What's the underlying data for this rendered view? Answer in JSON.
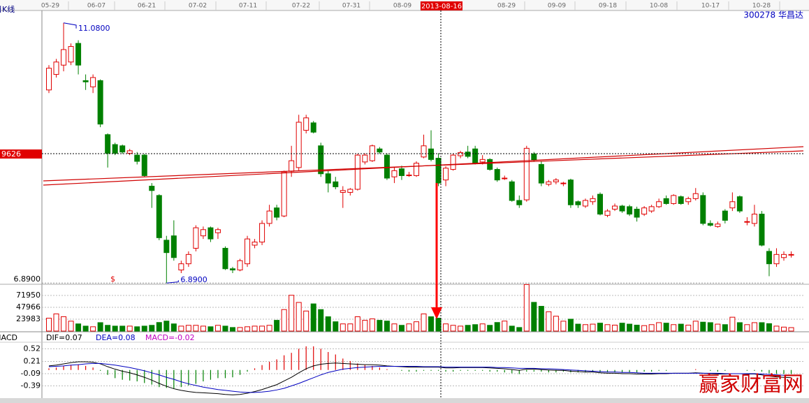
{
  "header": {
    "period": "日K线",
    "stock": "300278 华昌达",
    "cursor_date": "2013-08-16",
    "cursor_price_label": "9626",
    "signal_marker": "$",
    "watermark": "赢家财富网",
    "dates": [
      "05-29",
      "06-07",
      "06-21",
      "07-02",
      "07-11",
      "07-22",
      "07-31",
      "08-09",
      "08-29",
      "09-09",
      "09-18",
      "10-08",
      "10-17",
      "10-28"
    ]
  },
  "chart_data": [
    {
      "type": "candlestick",
      "ylim": [
        6.87,
        11.28
      ],
      "yticks": [
        {
          "value": 6.89,
          "label": "6.8900"
        }
      ],
      "up_color": "#e00000",
      "down_color": "#008000",
      "annotations": [
        {
          "value": 11.08,
          "label": "11.0800"
        },
        {
          "value": 6.89,
          "label": "6.8900"
        }
      ],
      "candles": [
        [
          10.0,
          10.4,
          9.95,
          10.35
        ],
        [
          10.25,
          10.5,
          10.2,
          10.45
        ],
        [
          10.4,
          11.08,
          10.3,
          10.65
        ],
        [
          10.45,
          10.75,
          10.4,
          10.7
        ],
        [
          10.75,
          10.8,
          10.25,
          10.4
        ],
        [
          10.15,
          10.25,
          10.0,
          10.13
        ],
        [
          10.05,
          10.25,
          9.95,
          10.2
        ],
        [
          10.15,
          10.17,
          9.4,
          9.45
        ],
        [
          9.28,
          9.3,
          8.75,
          8.98
        ],
        [
          9.12,
          9.15,
          8.95,
          8.98
        ],
        [
          9.1,
          9.12,
          8.97,
          9.0
        ],
        [
          8.98,
          9.05,
          8.95,
          9.02
        ],
        [
          8.95,
          9.0,
          8.8,
          8.85
        ],
        [
          8.95,
          8.97,
          8.6,
          8.62
        ],
        [
          8.45,
          8.5,
          8.1,
          8.38
        ],
        [
          8.3,
          8.32,
          7.58,
          7.62
        ],
        [
          7.58,
          7.65,
          6.89,
          7.38
        ],
        [
          7.65,
          7.9,
          7.25,
          7.3
        ],
        [
          7.1,
          7.25,
          7.05,
          7.2
        ],
        [
          7.2,
          7.4,
          7.15,
          7.35
        ],
        [
          7.45,
          7.82,
          7.4,
          7.78
        ],
        [
          7.65,
          7.8,
          7.6,
          7.75
        ],
        [
          7.78,
          7.8,
          7.55,
          7.6
        ],
        [
          7.7,
          7.78,
          7.6,
          7.75
        ],
        [
          7.45,
          7.48,
          7.1,
          7.12
        ],
        [
          7.12,
          7.15,
          7.05,
          7.1
        ],
        [
          7.1,
          7.28,
          7.08,
          7.25
        ],
        [
          7.2,
          7.65,
          7.15,
          7.6
        ],
        [
          7.5,
          7.6,
          7.45,
          7.55
        ],
        [
          7.55,
          7.9,
          7.5,
          7.85
        ],
        [
          7.85,
          8.15,
          7.8,
          8.05
        ],
        [
          8.1,
          8.15,
          7.9,
          7.95
        ],
        [
          7.97,
          8.7,
          7.95,
          8.68
        ],
        [
          8.69,
          9.1,
          8.6,
          8.86
        ],
        [
          8.75,
          9.6,
          8.7,
          9.48
        ],
        [
          9.35,
          9.6,
          9.3,
          9.55
        ],
        [
          9.47,
          9.5,
          9.3,
          9.32
        ],
        [
          9.1,
          9.15,
          8.6,
          8.65
        ],
        [
          8.65,
          8.7,
          8.35,
          8.5
        ],
        [
          8.52,
          8.6,
          8.4,
          8.44
        ],
        [
          8.35,
          8.45,
          8.1,
          8.38
        ],
        [
          8.35,
          8.42,
          8.3,
          8.4
        ],
        [
          8.4,
          8.97,
          8.38,
          8.95
        ],
        [
          8.84,
          8.98,
          8.8,
          8.95
        ],
        [
          8.86,
          9.12,
          8.84,
          9.1
        ],
        [
          9.05,
          9.08,
          8.97,
          9.0
        ],
        [
          8.95,
          8.98,
          8.55,
          8.58
        ],
        [
          8.6,
          8.75,
          8.5,
          8.7
        ],
        [
          8.73,
          8.78,
          8.55,
          8.62
        ],
        [
          8.63,
          8.68,
          8.6,
          8.63
        ],
        [
          8.62,
          8.85,
          8.6,
          8.82
        ],
        [
          8.92,
          9.28,
          8.9,
          9.1
        ],
        [
          9.05,
          9.35,
          8.85,
          8.88
        ],
        [
          8.9,
          8.98,
          8.45,
          8.5
        ],
        [
          8.55,
          8.77,
          8.45,
          8.74
        ],
        [
          8.72,
          8.97,
          8.7,
          8.95
        ],
        [
          8.94,
          9.02,
          8.9,
          8.99
        ],
        [
          9.0,
          9.1,
          8.9,
          8.93
        ],
        [
          9.05,
          9.1,
          8.8,
          8.82
        ],
        [
          8.84,
          8.95,
          8.8,
          8.88
        ],
        [
          8.88,
          8.9,
          8.7,
          8.72
        ],
        [
          8.72,
          8.75,
          8.52,
          8.55
        ],
        [
          8.58,
          8.62,
          8.55,
          8.58
        ],
        [
          8.52,
          8.55,
          8.2,
          8.22
        ],
        [
          8.22,
          8.3,
          8.1,
          8.15
        ],
        [
          8.23,
          9.1,
          8.2,
          9.06
        ],
        [
          8.97,
          9.0,
          8.85,
          8.87
        ],
        [
          8.8,
          8.85,
          8.45,
          8.5
        ],
        [
          8.48,
          8.55,
          8.45,
          8.52
        ],
        [
          8.52,
          8.58,
          8.48,
          8.55
        ],
        [
          8.5,
          8.52,
          8.45,
          8.5
        ],
        [
          8.55,
          8.57,
          8.1,
          8.15
        ],
        [
          8.2,
          8.22,
          8.1,
          8.15
        ],
        [
          8.13,
          8.25,
          8.1,
          8.22
        ],
        [
          8.2,
          8.3,
          8.15,
          8.25
        ],
        [
          8.32,
          8.35,
          7.98,
          8.0
        ],
        [
          7.98,
          8.08,
          7.95,
          8.05
        ],
        [
          8.08,
          8.17,
          8.05,
          8.13
        ],
        [
          8.13,
          8.15,
          8.02,
          8.05
        ],
        [
          8.12,
          8.15,
          7.97,
          8.0
        ],
        [
          8.08,
          8.12,
          7.88,
          7.95
        ],
        [
          8.0,
          8.13,
          7.97,
          8.1
        ],
        [
          8.05,
          8.15,
          8.02,
          8.12
        ],
        [
          8.12,
          8.25,
          8.1,
          8.2
        ],
        [
          8.25,
          8.3,
          8.15,
          8.17
        ],
        [
          8.17,
          8.32,
          8.15,
          8.3
        ],
        [
          8.28,
          8.3,
          8.15,
          8.17
        ],
        [
          8.2,
          8.28,
          8.15,
          8.25
        ],
        [
          8.25,
          8.42,
          8.22,
          8.33
        ],
        [
          8.3,
          8.35,
          7.82,
          7.85
        ],
        [
          7.85,
          7.9,
          7.8,
          7.82
        ],
        [
          7.8,
          7.88,
          7.78,
          7.84
        ],
        [
          8.05,
          8.08,
          7.85,
          7.9
        ],
        [
          8.1,
          8.35,
          8.05,
          8.2
        ],
        [
          8.28,
          8.3,
          8.02,
          8.05
        ],
        [
          7.88,
          7.95,
          7.82,
          7.88
        ],
        [
          7.85,
          8.15,
          7.8,
          8.0
        ],
        [
          8.0,
          8.05,
          7.48,
          7.5
        ],
        [
          7.4,
          7.45,
          7.0,
          7.2
        ],
        [
          7.2,
          7.45,
          7.15,
          7.35
        ],
        [
          7.3,
          7.4,
          7.25,
          7.35
        ],
        [
          7.35,
          7.4,
          7.3,
          7.35
        ]
      ]
    },
    {
      "type": "volume",
      "ylim": [
        0,
        94500
      ],
      "yticks": [
        23983,
        47966,
        71950
      ],
      "values": [
        26000,
        34700,
        29000,
        20000,
        14500,
        10000,
        8700,
        17000,
        11600,
        10000,
        10000,
        10000,
        8700,
        10000,
        11600,
        17300,
        20200,
        14500,
        10000,
        11600,
        11600,
        10000,
        8700,
        11600,
        10000,
        7200,
        7200,
        8700,
        10000,
        10000,
        11600,
        21700,
        43400,
        72300,
        57800,
        40500,
        54900,
        43400,
        28900,
        18800,
        14500,
        14500,
        28900,
        21700,
        24600,
        21700,
        20200,
        14500,
        11600,
        14500,
        18800,
        34700,
        28900,
        26000,
        14500,
        11600,
        10000,
        11600,
        13000,
        14500,
        11600,
        17300,
        20200,
        10000,
        7200,
        94000,
        58000,
        50000,
        39000,
        30000,
        20000,
        24000,
        14000,
        13000,
        14000,
        16000,
        13000,
        12000,
        16000,
        14000,
        12000,
        11000,
        13000,
        17000,
        16000,
        13000,
        14000,
        12000,
        20000,
        18000,
        17000,
        14000,
        13000,
        28000,
        17000,
        13000,
        17000,
        17000,
        15000,
        10000,
        8000,
        7000
      ]
    },
    {
      "type": "macd",
      "title": "MACD",
      "ylim": [
        -0.69,
        0.68
      ],
      "yticks": [
        0.52,
        0.21,
        -0.09,
        -0.39
      ],
      "readout": [
        "DIF=0.07",
        "DEA=0.08",
        "MACD=-0.02"
      ],
      "series": [
        {
          "name": "DIF",
          "color": "#000000",
          "values": [
            0.1,
            0.12,
            0.15,
            0.18,
            0.2,
            0.2,
            0.19,
            0.15,
            0.08,
            0.02,
            -0.03,
            -0.07,
            -0.12,
            -0.18,
            -0.25,
            -0.33,
            -0.4,
            -0.46,
            -0.5,
            -0.53,
            -0.55,
            -0.56,
            -0.57,
            -0.58,
            -0.6,
            -0.61,
            -0.6,
            -0.57,
            -0.53,
            -0.48,
            -0.42,
            -0.36,
            -0.27,
            -0.18,
            -0.07,
            0.03,
            0.1,
            0.14,
            0.16,
            0.17,
            0.16,
            0.15,
            0.14,
            0.13,
            0.13,
            0.12,
            0.1,
            0.09,
            0.08,
            0.07,
            0.07,
            0.07,
            0.07,
            0.07,
            0.05,
            0.05,
            0.06,
            0.06,
            0.06,
            0.06,
            0.05,
            0.04,
            0.03,
            0.01,
            -0.01,
            0.02,
            0.02,
            0.01,
            0.0,
            -0.01,
            -0.01,
            -0.03,
            -0.04,
            -0.05,
            -0.05,
            -0.07,
            -0.08,
            -0.08,
            -0.09,
            -0.09,
            -0.1,
            -0.1,
            -0.1,
            -0.09,
            -0.09,
            -0.08,
            -0.08,
            -0.08,
            -0.07,
            -0.08,
            -0.09,
            -0.1,
            -0.1,
            -0.09,
            -0.09,
            -0.1,
            -0.1,
            -0.12,
            -0.15,
            -0.17,
            -0.18,
            -0.19
          ]
        },
        {
          "name": "DEA",
          "color": "#0000c0",
          "values": [
            0.08,
            0.09,
            0.1,
            0.12,
            0.13,
            0.15,
            0.16,
            0.16,
            0.14,
            0.12,
            0.09,
            0.06,
            0.02,
            -0.02,
            -0.07,
            -0.12,
            -0.18,
            -0.23,
            -0.29,
            -0.34,
            -0.38,
            -0.42,
            -0.45,
            -0.48,
            -0.5,
            -0.52,
            -0.54,
            -0.55,
            -0.55,
            -0.54,
            -0.52,
            -0.49,
            -0.45,
            -0.39,
            -0.33,
            -0.26,
            -0.19,
            -0.12,
            -0.06,
            -0.02,
            0.02,
            0.04,
            0.06,
            0.07,
            0.08,
            0.09,
            0.09,
            0.09,
            0.09,
            0.09,
            0.09,
            0.08,
            0.08,
            0.08,
            0.07,
            0.07,
            0.07,
            0.07,
            0.07,
            0.07,
            0.07,
            0.06,
            0.06,
            0.05,
            0.04,
            0.04,
            0.04,
            0.03,
            0.03,
            0.02,
            0.01,
            0.0,
            -0.01,
            -0.02,
            -0.03,
            -0.04,
            -0.05,
            -0.05,
            -0.06,
            -0.06,
            -0.07,
            -0.08,
            -0.08,
            -0.08,
            -0.08,
            -0.08,
            -0.08,
            -0.08,
            -0.08,
            -0.08,
            -0.08,
            -0.08,
            -0.09,
            -0.09,
            -0.09,
            -0.09,
            -0.09,
            -0.1,
            -0.11,
            -0.12,
            -0.13,
            -0.14
          ]
        },
        {
          "name": "MACD",
          "color": "#e00000",
          "values": [
            0.04,
            0.06,
            0.1,
            0.12,
            0.14,
            0.1,
            0.06,
            -0.02,
            -0.12,
            -0.2,
            -0.24,
            -0.26,
            -0.28,
            -0.32,
            -0.36,
            -0.42,
            -0.44,
            -0.46,
            -0.42,
            -0.38,
            -0.34,
            -0.28,
            -0.24,
            -0.2,
            -0.2,
            -0.18,
            -0.12,
            -0.04,
            0.04,
            0.12,
            0.2,
            0.26,
            0.36,
            0.42,
            0.52,
            0.58,
            0.58,
            0.52,
            0.44,
            0.38,
            0.28,
            0.22,
            0.16,
            0.12,
            0.1,
            0.06,
            0.02,
            0.0,
            -0.02,
            -0.04,
            -0.04,
            -0.02,
            -0.02,
            -0.02,
            -0.04,
            -0.04,
            -0.02,
            -0.02,
            -0.02,
            -0.02,
            -0.04,
            -0.04,
            -0.06,
            -0.08,
            -0.1,
            -0.04,
            -0.04,
            -0.04,
            -0.06,
            -0.06,
            -0.04,
            -0.06,
            -0.06,
            -0.06,
            -0.04,
            -0.06,
            -0.06,
            -0.06,
            -0.06,
            -0.06,
            -0.06,
            -0.04,
            -0.04,
            -0.02,
            -0.02,
            0.0,
            0.0,
            0.0,
            0.02,
            0.0,
            -0.02,
            -0.04,
            -0.02,
            0.0,
            0.0,
            -0.02,
            -0.02,
            -0.04,
            -0.08,
            -0.1,
            -0.1,
            -0.1
          ]
        }
      ]
    }
  ]
}
